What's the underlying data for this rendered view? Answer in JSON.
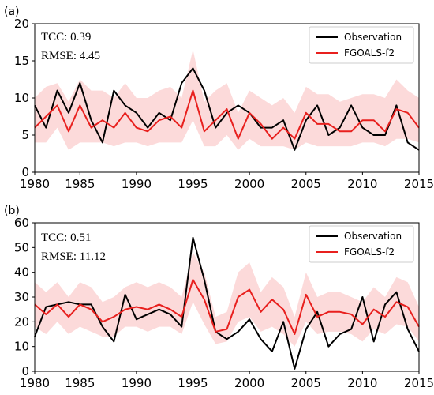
{
  "colors": {
    "observation": "#000000",
    "model": "#e8201e",
    "spread": "#fbd3d3"
  },
  "chart_data": [
    {
      "type": "line",
      "panel_label": "(a)",
      "stats": [
        "TCC: 0.39",
        "RMSE: 4.45"
      ],
      "legend": [
        "Observation",
        "FGOALS-f2"
      ],
      "legend_position": "top-right",
      "xlim": [
        1981,
        2015
      ],
      "ylim": [
        0,
        20
      ],
      "xticks": [
        1980,
        1985,
        1990,
        1995,
        2000,
        2005,
        2010,
        2015
      ],
      "yticks": [
        0,
        5,
        10,
        15,
        20
      ],
      "x": [
        1981,
        1982,
        1983,
        1984,
        1985,
        1986,
        1987,
        1988,
        1989,
        1990,
        1991,
        1992,
        1993,
        1994,
        1995,
        1996,
        1997,
        1998,
        1999,
        2000,
        2001,
        2002,
        2003,
        2004,
        2005,
        2006,
        2007,
        2008,
        2009,
        2010,
        2011,
        2012,
        2013,
        2014,
        2015
      ],
      "series": [
        {
          "name": "Observation",
          "values": [
            9,
            6,
            11,
            8,
            12,
            7,
            4,
            11,
            9,
            8,
            6,
            8,
            7,
            12,
            14,
            11,
            6,
            8,
            9,
            8,
            6,
            6,
            7,
            3,
            7,
            9,
            5,
            6,
            9,
            6,
            5,
            5,
            9,
            4,
            3
          ]
        },
        {
          "name": "FGOALS-f2",
          "values": [
            6,
            7.5,
            9,
            5.5,
            9,
            6,
            7,
            6,
            8,
            6,
            5.5,
            7,
            7.5,
            6,
            11,
            5.5,
            7,
            8.5,
            4.5,
            8,
            6.5,
            4.5,
            6,
            4.5,
            8,
            6.5,
            6.5,
            5.5,
            5.5,
            7,
            7,
            5.5,
            8.5,
            8,
            6
          ]
        }
      ],
      "band": {
        "lower": [
          4,
          4,
          6,
          3,
          4,
          4,
          4,
          3.5,
          4,
          4,
          3.5,
          4,
          4,
          4,
          7,
          3.5,
          3.5,
          5,
          3,
          4.5,
          3.5,
          3.5,
          3.5,
          3,
          4,
          3.5,
          3.5,
          3.5,
          3.5,
          4,
          4,
          3.5,
          4.5,
          4.5,
          4
        ],
        "upper": [
          10,
          11.5,
          12,
          9.5,
          12.5,
          11,
          11,
          10,
          12,
          10,
          10,
          11,
          11.5,
          10,
          16.5,
          9.5,
          11,
          12,
          8,
          11,
          10,
          9,
          10,
          8,
          11.5,
          10.5,
          10.5,
          9.5,
          10,
          10.5,
          10.5,
          10,
          12.5,
          11,
          10
        ]
      }
    },
    {
      "type": "line",
      "panel_label": "(b)",
      "stats": [
        "TCC: 0.51",
        "RMSE: 11.12"
      ],
      "legend": [
        "Observation",
        "FGOALS-f2"
      ],
      "legend_position": "top-right",
      "xlim": [
        1981,
        2015
      ],
      "ylim": [
        0,
        60
      ],
      "xticks": [
        1980,
        1985,
        1990,
        1995,
        2000,
        2005,
        2010,
        2015
      ],
      "yticks": [
        0,
        10,
        20,
        30,
        40,
        50,
        60
      ],
      "x": [
        1981,
        1982,
        1983,
        1984,
        1985,
        1986,
        1987,
        1988,
        1989,
        1990,
        1991,
        1992,
        1993,
        1994,
        1995,
        1996,
        1997,
        1998,
        1999,
        2000,
        2001,
        2002,
        2003,
        2004,
        2005,
        2006,
        2007,
        2008,
        2009,
        2010,
        2011,
        2012,
        2013,
        2014,
        2015
      ],
      "series": [
        {
          "name": "Observation",
          "values": [
            14,
            26,
            27,
            28,
            27,
            27,
            18,
            12,
            31,
            21,
            23,
            25,
            23,
            18,
            54,
            37,
            16,
            13,
            16,
            21,
            13,
            8,
            20,
            1,
            17,
            24,
            10,
            15,
            17,
            30,
            12,
            27,
            32,
            17,
            8
          ]
        },
        {
          "name": "FGOALS-f2",
          "values": [
            27,
            23,
            27,
            22,
            27,
            25,
            20,
            22,
            25,
            26,
            25,
            27,
            25,
            22,
            37,
            29,
            16,
            17,
            30,
            33,
            24,
            29,
            25,
            15,
            31,
            22,
            24,
            24,
            23,
            19,
            25,
            22,
            28,
            26,
            18
          ]
        }
      ],
      "band": {
        "lower": [
          18,
          15,
          20,
          15,
          18,
          16,
          14,
          14,
          18,
          18,
          16,
          18,
          18,
          15,
          28,
          19,
          11,
          12,
          20,
          22,
          16,
          18,
          15,
          10,
          20,
          15,
          16,
          16,
          15,
          12,
          17,
          15,
          19,
          18,
          12
        ],
        "upper": [
          36,
          32,
          36,
          30,
          36,
          34,
          28,
          30,
          34,
          36,
          34,
          36,
          34,
          30,
          48,
          40,
          22,
          24,
          40,
          44,
          32,
          38,
          34,
          22,
          40,
          30,
          32,
          32,
          30,
          28,
          34,
          30,
          38,
          36,
          26
        ]
      }
    }
  ]
}
